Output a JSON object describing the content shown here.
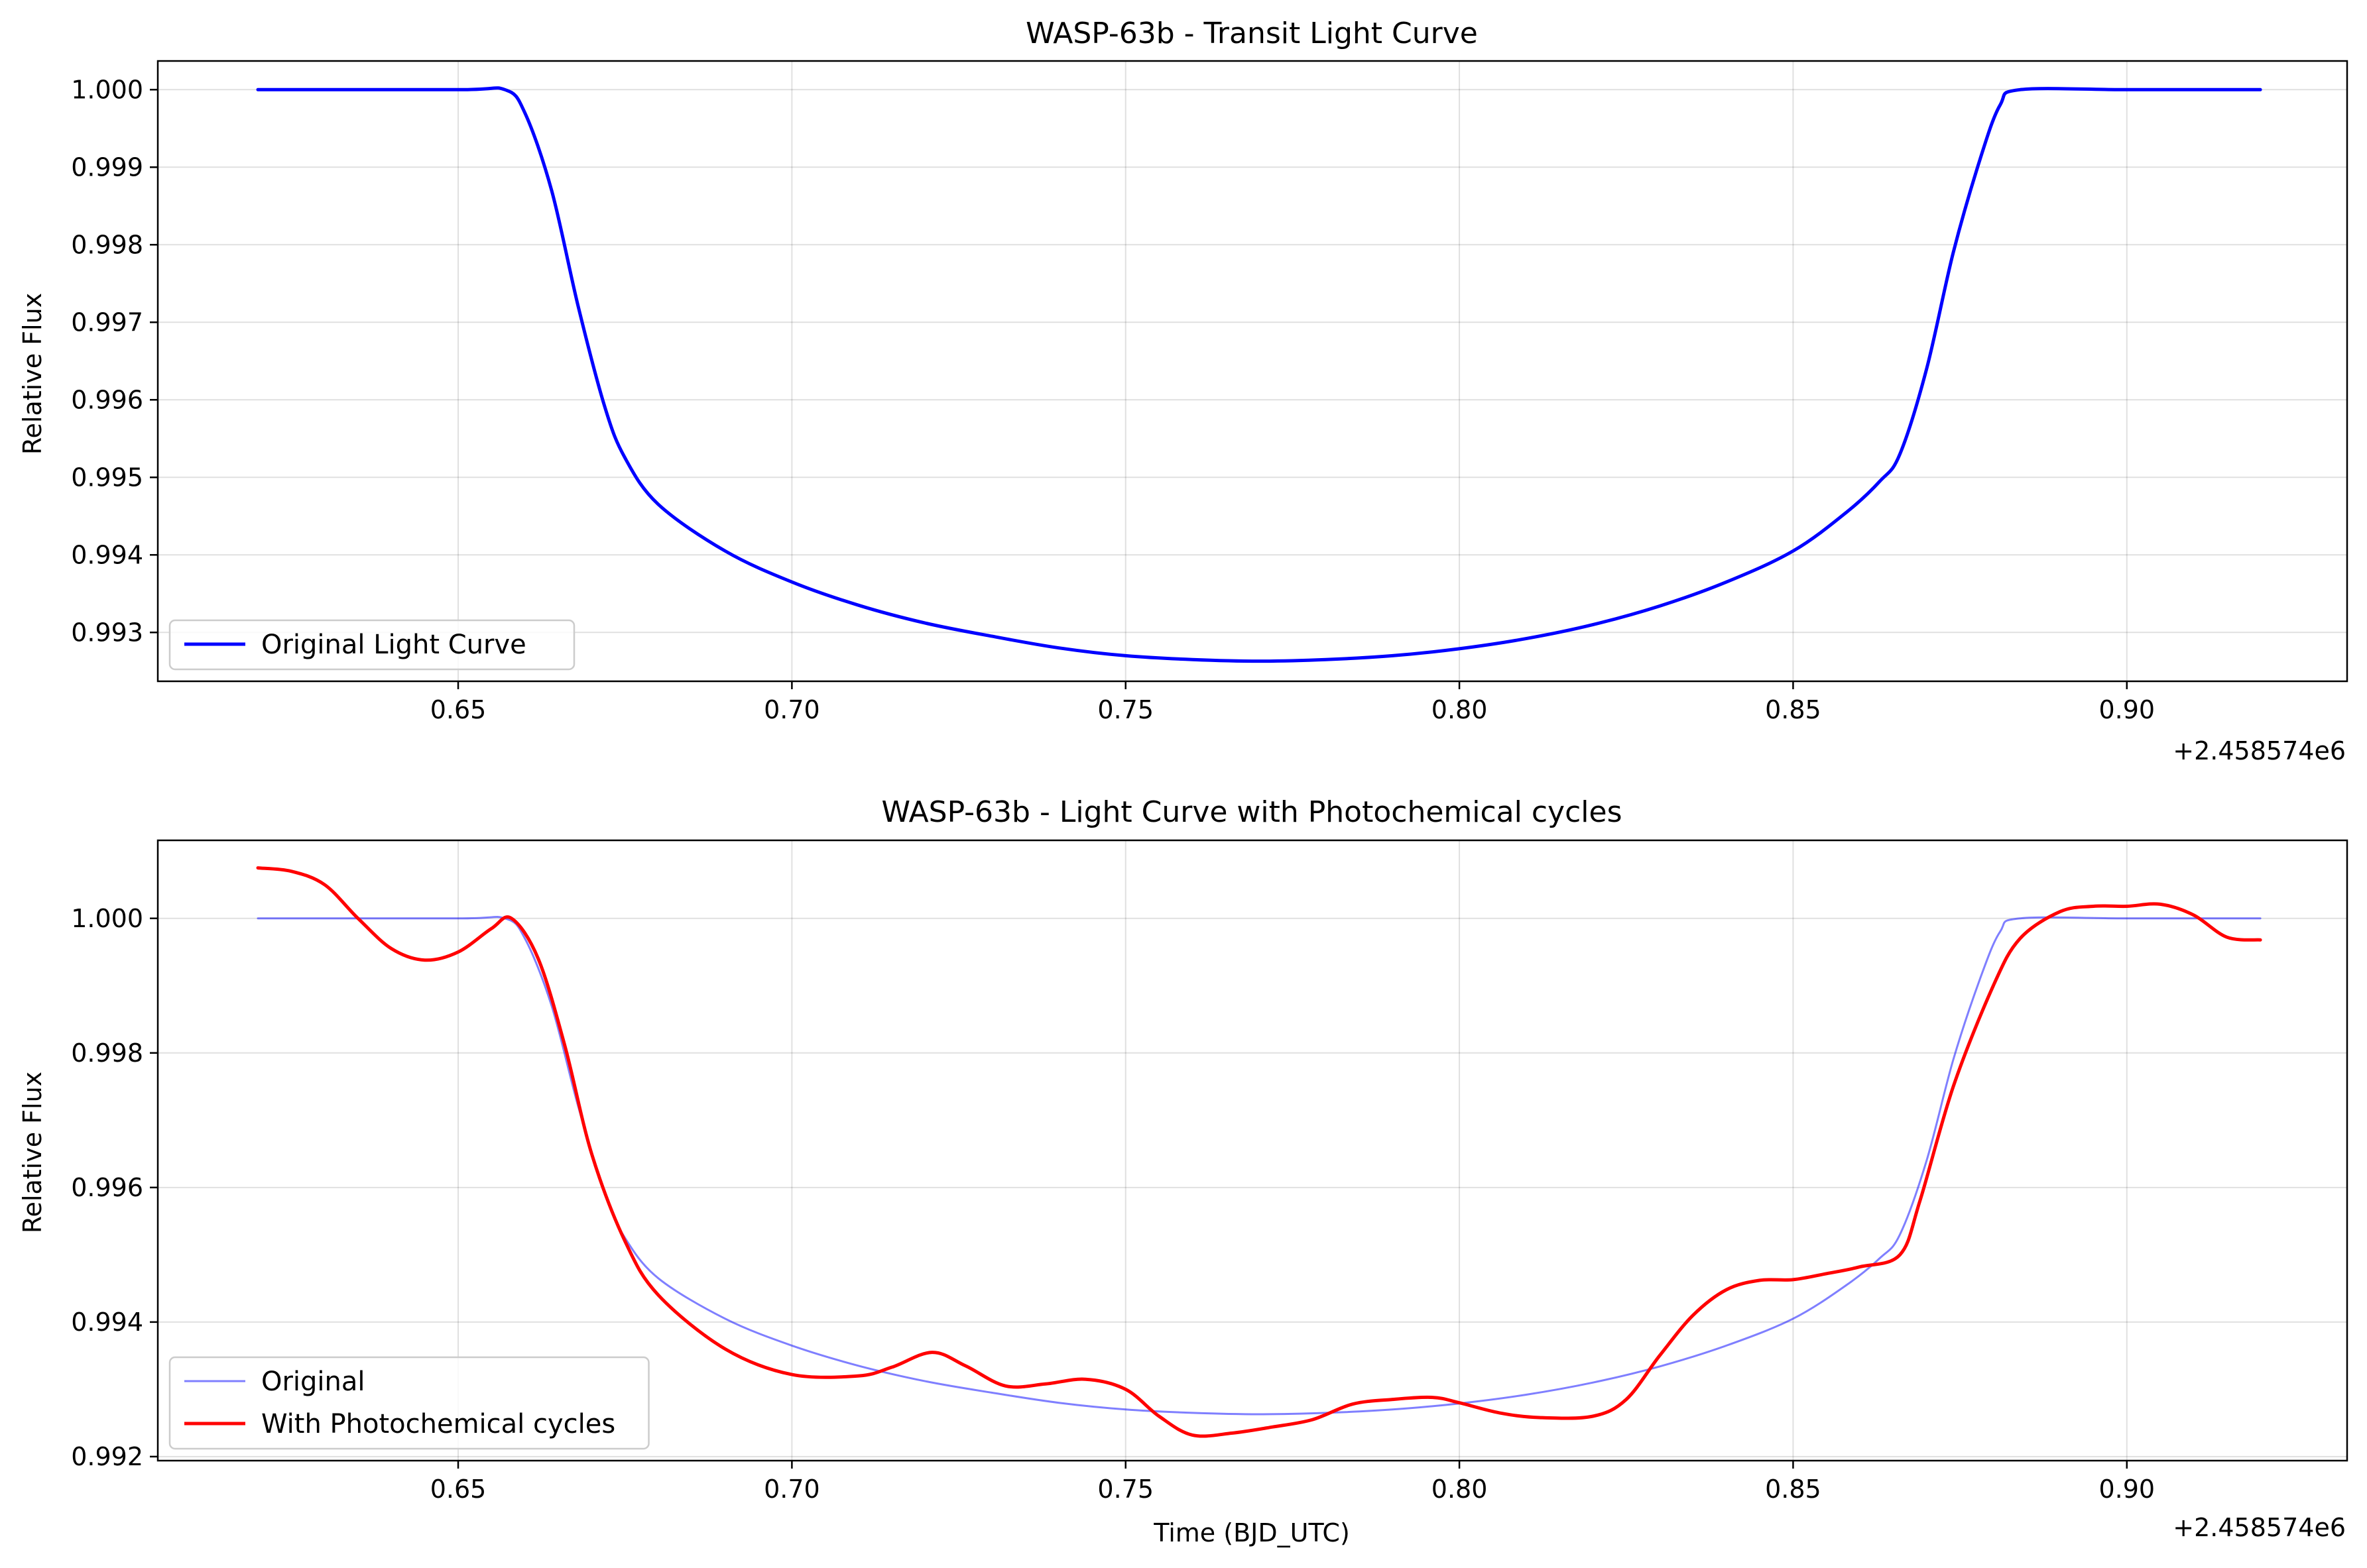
{
  "chart_data": [
    {
      "type": "line",
      "title": "WASP-63b - Transit Light Curve",
      "xlabel": "",
      "ylabel": "Relative Flux",
      "x_offset_label": "+2.458574e6",
      "xlim": [
        0.605,
        0.933
      ],
      "ylim": [
        0.99237,
        1.00037
      ],
      "xticks": [
        0.65,
        0.7,
        0.75,
        0.8,
        0.85,
        0.9
      ],
      "xtick_labels": [
        "0.65",
        "0.70",
        "0.75",
        "0.80",
        "0.85",
        "0.90"
      ],
      "yticks": [
        0.993,
        0.994,
        0.995,
        0.996,
        0.997,
        0.998,
        0.999,
        1.0
      ],
      "ytick_labels": [
        "0.993",
        "0.994",
        "0.995",
        "0.996",
        "0.997",
        "0.998",
        "0.999",
        "1.000"
      ],
      "grid": true,
      "legend_position": "lower-left",
      "series": [
        {
          "name": "Original Light Curve",
          "color": "#0000ff",
          "opacity": 1,
          "width": "thick",
          "points": [
            [
              0.62,
              1.0
            ],
            [
              0.65,
              1.0
            ],
            [
              0.657,
              1.0
            ],
            [
              0.66,
              0.9997
            ],
            [
              0.664,
              0.9987
            ],
            [
              0.668,
              0.9972
            ],
            [
              0.672,
              0.9959
            ],
            [
              0.675,
              0.99525
            ],
            [
              0.68,
              0.99465
            ],
            [
              0.69,
              0.99405
            ],
            [
              0.7,
              0.99365
            ],
            [
              0.71,
              0.99335
            ],
            [
              0.72,
              0.99312
            ],
            [
              0.73,
              0.99295
            ],
            [
              0.74,
              0.9928
            ],
            [
              0.75,
              0.9927
            ],
            [
              0.76,
              0.99265
            ],
            [
              0.77,
              0.99263
            ],
            [
              0.78,
              0.99265
            ],
            [
              0.79,
              0.9927
            ],
            [
              0.8,
              0.99279
            ],
            [
              0.81,
              0.99292
            ],
            [
              0.82,
              0.9931
            ],
            [
              0.83,
              0.99334
            ],
            [
              0.84,
              0.99365
            ],
            [
              0.85,
              0.99405
            ],
            [
              0.858,
              0.99455
            ],
            [
              0.863,
              0.99495
            ],
            [
              0.866,
              0.9953
            ],
            [
              0.87,
              0.9964
            ],
            [
              0.874,
              0.9979
            ],
            [
              0.878,
              0.9991
            ],
            [
              0.881,
              0.9998
            ],
            [
              0.884,
              1.0
            ],
            [
              0.9,
              1.0
            ],
            [
              0.92,
              1.0
            ]
          ]
        }
      ]
    },
    {
      "type": "line",
      "title": "WASP-63b - Light Curve with Photochemical cycles",
      "xlabel": "Time (BJD_UTC)",
      "ylabel": "Relative Flux",
      "x_offset_label": "+2.458574e6",
      "xlim": [
        0.605,
        0.933
      ],
      "ylim": [
        0.99194,
        1.00116
      ],
      "xticks": [
        0.65,
        0.7,
        0.75,
        0.8,
        0.85,
        0.9
      ],
      "xtick_labels": [
        "0.65",
        "0.70",
        "0.75",
        "0.80",
        "0.85",
        "0.90"
      ],
      "yticks": [
        0.992,
        0.994,
        0.996,
        0.998,
        1.0
      ],
      "ytick_labels": [
        "0.992",
        "0.994",
        "0.996",
        "0.998",
        "1.000"
      ],
      "grid": true,
      "legend_position": "lower-left",
      "series": [
        {
          "name": "Original",
          "color": "#0000ff",
          "opacity": 0.5,
          "width": "thin",
          "points": [
            [
              0.62,
              1.0
            ],
            [
              0.65,
              1.0
            ],
            [
              0.657,
              1.0
            ],
            [
              0.66,
              0.9997
            ],
            [
              0.664,
              0.9987
            ],
            [
              0.668,
              0.9972
            ],
            [
              0.672,
              0.9959
            ],
            [
              0.675,
              0.99525
            ],
            [
              0.68,
              0.99465
            ],
            [
              0.69,
              0.99405
            ],
            [
              0.7,
              0.99365
            ],
            [
              0.71,
              0.99335
            ],
            [
              0.72,
              0.99312
            ],
            [
              0.73,
              0.99295
            ],
            [
              0.74,
              0.9928
            ],
            [
              0.75,
              0.9927
            ],
            [
              0.76,
              0.99265
            ],
            [
              0.77,
              0.99263
            ],
            [
              0.78,
              0.99265
            ],
            [
              0.79,
              0.9927
            ],
            [
              0.8,
              0.99279
            ],
            [
              0.81,
              0.99292
            ],
            [
              0.82,
              0.9931
            ],
            [
              0.83,
              0.99334
            ],
            [
              0.84,
              0.99365
            ],
            [
              0.85,
              0.99405
            ],
            [
              0.858,
              0.99455
            ],
            [
              0.863,
              0.99495
            ],
            [
              0.866,
              0.9953
            ],
            [
              0.87,
              0.9964
            ],
            [
              0.874,
              0.9979
            ],
            [
              0.878,
              0.9991
            ],
            [
              0.881,
              0.9998
            ],
            [
              0.884,
              1.0
            ],
            [
              0.9,
              1.0
            ],
            [
              0.92,
              1.0
            ]
          ]
        },
        {
          "name": "With Photochemical cycles",
          "color": "#ff0000",
          "opacity": 1,
          "width": "thick",
          "points": [
            [
              0.62,
              1.00075
            ],
            [
              0.625,
              1.0007
            ],
            [
              0.63,
              1.0005
            ],
            [
              0.635,
              1.0
            ],
            [
              0.64,
              0.99955
            ],
            [
              0.645,
              0.99938
            ],
            [
              0.65,
              0.9995
            ],
            [
              0.655,
              0.99985
            ],
            [
              0.658,
              1.0
            ],
            [
              0.662,
              0.9994
            ],
            [
              0.666,
              0.9981
            ],
            [
              0.67,
              0.9965
            ],
            [
              0.675,
              0.9952
            ],
            [
              0.68,
              0.9944
            ],
            [
              0.69,
              0.9936
            ],
            [
              0.7,
              0.99322
            ],
            [
              0.71,
              0.9932
            ],
            [
              0.715,
              0.99333
            ],
            [
              0.721,
              0.99355
            ],
            [
              0.726,
              0.99335
            ],
            [
              0.732,
              0.99305
            ],
            [
              0.738,
              0.99308
            ],
            [
              0.744,
              0.99315
            ],
            [
              0.75,
              0.993
            ],
            [
              0.755,
              0.9926
            ],
            [
              0.76,
              0.99232
            ],
            [
              0.766,
              0.99235
            ],
            [
              0.772,
              0.99244
            ],
            [
              0.778,
              0.99255
            ],
            [
              0.784,
              0.99278
            ],
            [
              0.79,
              0.99285
            ],
            [
              0.796,
              0.99288
            ],
            [
              0.8,
              0.9928
            ],
            [
              0.806,
              0.99265
            ],
            [
              0.812,
              0.99258
            ],
            [
              0.82,
              0.9926
            ],
            [
              0.825,
              0.99285
            ],
            [
              0.83,
              0.9935
            ],
            [
              0.835,
              0.9941
            ],
            [
              0.84,
              0.99448
            ],
            [
              0.845,
              0.99462
            ],
            [
              0.85,
              0.99463
            ],
            [
              0.855,
              0.99472
            ],
            [
              0.86,
              0.99482
            ],
            [
              0.866,
              0.995
            ],
            [
              0.869,
              0.9958
            ],
            [
              0.874,
              0.9975
            ],
            [
              0.88,
              0.999
            ],
            [
              0.884,
              0.9997
            ],
            [
              0.89,
              1.0001
            ],
            [
              0.895,
              1.00018
            ],
            [
              0.9,
              1.00018
            ],
            [
              0.905,
              1.00021
            ],
            [
              0.91,
              1.00005
            ],
            [
              0.915,
              0.99972
            ],
            [
              0.92,
              0.99968
            ]
          ]
        }
      ]
    }
  ]
}
